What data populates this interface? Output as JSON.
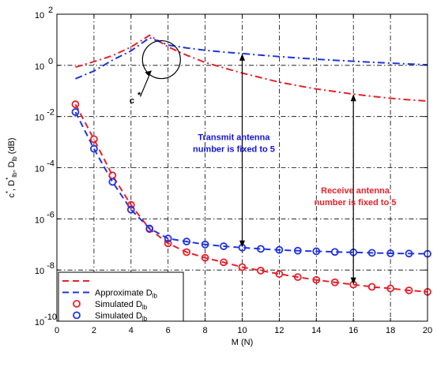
{
  "chart_data": {
    "type": "line",
    "xlabel": "M (N)",
    "ylabel": "c*, D*lb, Dlb (dB)",
    "xlim": [
      0,
      20
    ],
    "ylim_log10": [
      -10,
      2
    ],
    "y_scale": "log",
    "grid": true,
    "legend_placement": "bottom-left",
    "x_ticks": [
      "0",
      "2",
      "4",
      "6",
      "8",
      "10",
      "12",
      "14",
      "16",
      "18",
      "20"
    ],
    "y_ticks": [
      {
        "base": "10",
        "exp": "-10"
      },
      {
        "base": "10",
        "exp": "-8"
      },
      {
        "base": "10",
        "exp": "-6"
      },
      {
        "base": "10",
        "exp": "-4"
      },
      {
        "base": "10",
        "exp": "-2"
      },
      {
        "base": "10",
        "exp": "0"
      },
      {
        "base": "10",
        "exp": "2"
      }
    ],
    "series": [
      {
        "kind": "dashdot",
        "color": "#e8202a",
        "x": [
          1,
          2,
          3,
          4,
          5,
          6,
          7,
          8,
          9,
          10,
          11,
          12,
          13,
          14,
          15,
          16,
          17,
          18,
          19,
          20
        ],
        "y": [
          0.85,
          1.4,
          2.4,
          5.2,
          15,
          5.3,
          2.5,
          1.3,
          0.8,
          0.5,
          0.33,
          0.22,
          0.16,
          0.12,
          0.095,
          0.075,
          0.062,
          0.052,
          0.045,
          0.04
        ]
      },
      {
        "kind": "dashdot",
        "color": "#2034e0",
        "x": [
          1,
          2,
          3,
          4,
          5,
          6,
          7,
          8,
          9,
          10,
          11,
          12,
          13,
          14,
          15,
          16,
          17,
          18,
          19,
          20
        ],
        "y": [
          0.3,
          0.6,
          1.6,
          3.7,
          12,
          6.2,
          4.8,
          3.9,
          3.3,
          2.9,
          2.5,
          2.2,
          1.95,
          1.75,
          1.58,
          1.45,
          1.32,
          1.22,
          1.13,
          1.05
        ]
      },
      {
        "name": "Approximate",
        "kind": "dashed",
        "color": "#e8202a",
        "x": [
          1,
          2,
          3,
          4,
          5,
          6,
          7,
          8,
          9,
          10,
          11,
          12,
          13,
          14,
          15,
          16,
          17,
          18,
          19,
          20
        ],
        "y": [
          0.03,
          0.0013,
          5e-05,
          3.5e-06,
          4e-07,
          1.1e-07,
          5e-08,
          3e-08,
          2e-08,
          1.3e-08,
          9.5e-09,
          7e-09,
          5.3e-09,
          4.1e-09,
          3.3e-09,
          2.7e-09,
          2.2e-09,
          1.9e-09,
          1.6e-09,
          1.4e-09
        ]
      },
      {
        "name": "Approximate Dlb",
        "kind": "dashed",
        "color": "#2034e0",
        "x": [
          1,
          2,
          3,
          4,
          5,
          6,
          7,
          8,
          9,
          10,
          11,
          12,
          13,
          14,
          15,
          16,
          17,
          18,
          19,
          20
        ],
        "y": [
          0.015,
          0.00055,
          2.8e-05,
          2.3e-06,
          4.2e-07,
          1.7e-07,
          1.3e-07,
          1e-07,
          8.5e-08,
          7.5e-08,
          6.7e-08,
          6.1e-08,
          5.7e-08,
          5.4e-08,
          5.1e-08,
          4.9e-08,
          4.7e-08,
          4.5e-08,
          4.4e-08,
          4.3e-08
        ]
      },
      {
        "name": "Simulated Dlb",
        "kind": "markers",
        "color": "#e8202a",
        "x": [
          1,
          2,
          3,
          4,
          5,
          6,
          7,
          8,
          9,
          10,
          11,
          12,
          13,
          14,
          15,
          16,
          17,
          18,
          19,
          20
        ],
        "y": [
          0.03,
          0.0013,
          5e-05,
          3.5e-06,
          4e-07,
          1.1e-07,
          5e-08,
          3e-08,
          2e-08,
          1.3e-08,
          9.5e-09,
          7e-09,
          5.3e-09,
          4.1e-09,
          3.3e-09,
          2.7e-09,
          2.2e-09,
          1.9e-09,
          1.6e-09,
          1.4e-09
        ]
      },
      {
        "name": "Simulated Dlb",
        "kind": "markers",
        "color": "#2034e0",
        "x": [
          1,
          2,
          3,
          4,
          5,
          6,
          7,
          8,
          9,
          10,
          11,
          12,
          13,
          14,
          15,
          16,
          17,
          18,
          19,
          20
        ],
        "y": [
          0.015,
          0.00055,
          2.8e-05,
          2.3e-06,
          4.2e-07,
          1.7e-07,
          1.3e-07,
          1e-07,
          8.5e-08,
          7.5e-08,
          6.7e-08,
          6.1e-08,
          5.7e-08,
          5.4e-08,
          5.1e-08,
          4.9e-08,
          4.7e-08,
          4.5e-08,
          4.4e-08,
          4.3e-08
        ]
      }
    ],
    "legend": [
      {
        "label": "",
        "kind": "dashed",
        "color": "#e8202a"
      },
      {
        "label": "Approximate D",
        "sub": "lb",
        "kind": "dashed",
        "color": "#2034e0"
      },
      {
        "label": "Simulated D",
        "sub": "lb",
        "kind": "markers",
        "color": "#e8202a"
      },
      {
        "label": "Simulated D",
        "sub": "lb",
        "kind": "markers",
        "color": "#2034e0"
      }
    ],
    "annotations": {
      "cstar": {
        "text": "c",
        "sup": "*",
        "point": [
          5.6,
          1.8
        ]
      },
      "transmit": {
        "lines": [
          "Transmit antenna",
          "number is fixed to 5"
        ],
        "color": "#1414d8",
        "arrow_x": 10,
        "arrow_top": 2.9,
        "arrow_bottom": 7.5e-08
      },
      "receive": {
        "lines": [
          "Receive antenna",
          "number is fixed to 5"
        ],
        "color": "#e8202a",
        "arrow_x": 16,
        "arrow_top": 0.075,
        "arrow_bottom": 2.7e-09
      }
    }
  }
}
